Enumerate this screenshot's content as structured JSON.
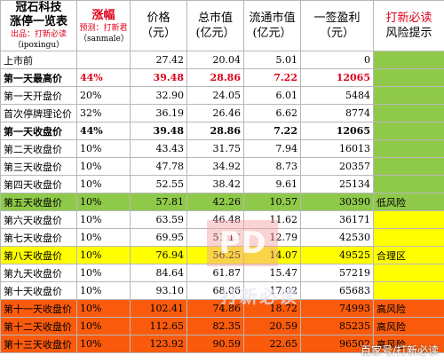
{
  "header": {
    "title_line1": "冠石科技",
    "title_line2": "涨停一览表",
    "title_sub1": "出品：打新必读",
    "title_sub2": "（ipoxingu）",
    "col_gain": "涨幅",
    "col_gain_sub1": "预测：打新君",
    "col_gain_sub2": "（sanmale）",
    "col_price": "价格",
    "col_price_unit": "（元）",
    "col_mcap": "总市值",
    "col_mcap_unit": "(亿元）",
    "col_float": "流通市值",
    "col_float_unit": "(亿元）",
    "col_profit": "一签盈利",
    "col_profit_unit": "（元）",
    "col_risk1": "打新必读",
    "col_risk2": "风险提示"
  },
  "rows": [
    {
      "label": "上市前",
      "gain": "",
      "price": "27.42",
      "mcap": "20.04",
      "float": "5.01",
      "profit": "0",
      "risk": "",
      "style": "",
      "riskbg": "green"
    },
    {
      "label": "第一天最高价",
      "gain": "44%",
      "price": "39.48",
      "mcap": "28.86",
      "float": "7.22",
      "profit": "12065",
      "risk": "",
      "style": "bold redrow",
      "riskbg": "green"
    },
    {
      "label": "第一天开盘价",
      "gain": "20%",
      "price": "32.90",
      "mcap": "24.05",
      "float": "6.01",
      "profit": "5484",
      "risk": "",
      "style": "",
      "riskbg": "green"
    },
    {
      "label": "首次停牌理论价",
      "gain": "32%",
      "price": "36.19",
      "mcap": "26.46",
      "float": "6.62",
      "profit": "8774",
      "risk": "",
      "style": "",
      "riskbg": "green"
    },
    {
      "label": "第一天收盘价",
      "gain": "44%",
      "price": "39.48",
      "mcap": "28.86",
      "float": "7.22",
      "profit": "12065",
      "risk": "",
      "style": "bold",
      "riskbg": "green"
    },
    {
      "label": "第二天收盘价",
      "gain": "10%",
      "price": "43.43",
      "mcap": "31.75",
      "float": "7.94",
      "profit": "16013",
      "risk": "",
      "style": "",
      "riskbg": "green"
    },
    {
      "label": "第三天收盘价",
      "gain": "10%",
      "price": "47.78",
      "mcap": "34.92",
      "float": "8.73",
      "profit": "20357",
      "risk": "",
      "style": "",
      "riskbg": "green"
    },
    {
      "label": "第四天收盘价",
      "gain": "10%",
      "price": "52.55",
      "mcap": "38.42",
      "float": "9.61",
      "profit": "25134",
      "risk": "",
      "style": "",
      "riskbg": "green"
    },
    {
      "label": "第五天收盘价",
      "gain": "10%",
      "price": "57.81",
      "mcap": "42.26",
      "float": "10.57",
      "profit": "30390",
      "risk": "低风险",
      "style": "",
      "riskbg": "",
      "rowbg": "green"
    },
    {
      "label": "第六天收盘价",
      "gain": "10%",
      "price": "63.59",
      "mcap": "46.48",
      "float": "11.62",
      "profit": "36171",
      "risk": "",
      "style": "",
      "riskbg": "yellow"
    },
    {
      "label": "第七天收盘价",
      "gain": "10%",
      "price": "69.95",
      "mcap": "51.13",
      "float": "12.79",
      "profit": "42530",
      "risk": "",
      "style": "",
      "riskbg": "yellow"
    },
    {
      "label": "第八天收盘价",
      "gain": "10%",
      "price": "76.94",
      "mcap": "56.25",
      "float": "14.07",
      "profit": "49525",
      "risk": "合理区",
      "style": "",
      "riskbg": "",
      "rowbg": "yellow"
    },
    {
      "label": "第九天收盘价",
      "gain": "10%",
      "price": "84.64",
      "mcap": "61.87",
      "float": "15.47",
      "profit": "57219",
      "risk": "",
      "style": "",
      "riskbg": "yellow"
    },
    {
      "label": "第十天收盘价",
      "gain": "10%",
      "price": "93.10",
      "mcap": "68.06",
      "float": "17.02",
      "profit": "65683",
      "risk": "",
      "style": "",
      "riskbg": "yellow"
    },
    {
      "label": "第十一天收盘价",
      "gain": "10%",
      "price": "102.41",
      "mcap": "74.86",
      "float": "18.72",
      "profit": "74993",
      "risk": "高风险",
      "style": "",
      "riskbg": "",
      "rowbg": "orange"
    },
    {
      "label": "第十二天收盘价",
      "gain": "10%",
      "price": "112.65",
      "mcap": "82.35",
      "float": "20.59",
      "profit": "85235",
      "risk": "高风险",
      "style": "",
      "riskbg": "",
      "rowbg": "orange"
    },
    {
      "label": "第十三天收盘价",
      "gain": "10%",
      "price": "123.92",
      "mcap": "90.59",
      "float": "22.65",
      "profit": "96502",
      "risk": "高风险",
      "style": "",
      "riskbg": "",
      "rowbg": "orange"
    }
  ],
  "watermark": {
    "logo": "PD",
    "text": "打新必读",
    "corner": "百家号/打新必读"
  }
}
